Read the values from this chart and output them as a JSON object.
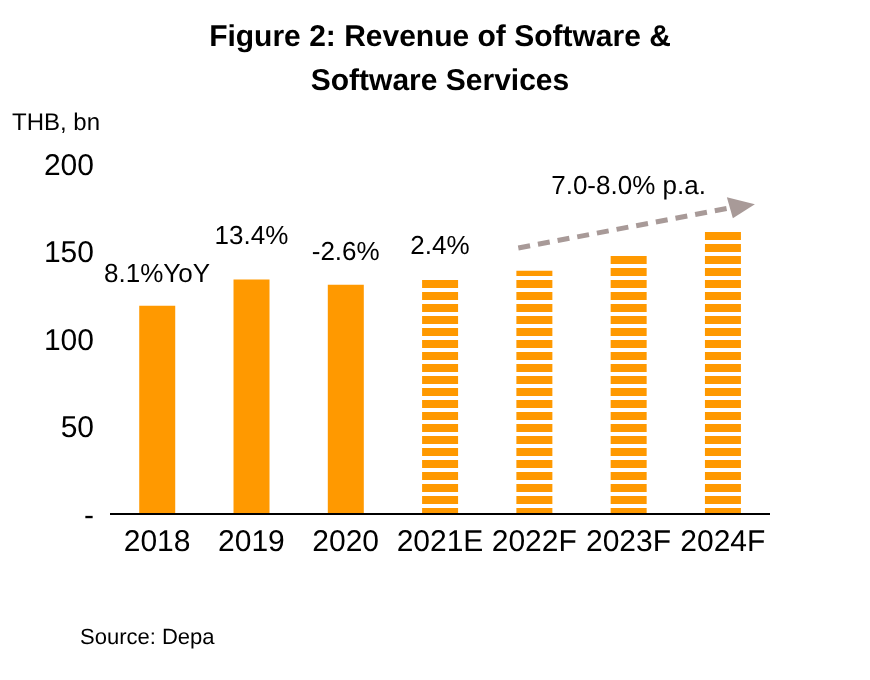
{
  "chart_data": {
    "type": "bar",
    "title": "Figure 2: Revenue of Software & Software Services",
    "ylabel": "THB, bn",
    "categories": [
      "2018",
      "2019",
      "2020",
      "2021E",
      "2022F",
      "2023F",
      "2024F"
    ],
    "stacked": true,
    "series": [
      {
        "color": "#ff9900",
        "values": [
          119,
          134,
          131,
          null,
          null,
          null,
          null
        ]
      },
      {
        "color": "#ff9900",
        "line_style": "dashed",
        "values": [
          null,
          null,
          null,
          135,
          139,
          149,
          162
        ]
      }
    ],
    "ylim": [
      0,
      200
    ],
    "yticks": [
      {
        "value": 0,
        "label": "-"
      },
      50,
      100,
      150,
      200
    ],
    "grid": false,
    "legend": false,
    "annotations": [
      "8.1%YoY",
      "13.4%",
      "-2.6%",
      "2.4%",
      "7.0-8.0% p.a.",
      "Source: Depa"
    ]
  }
}
